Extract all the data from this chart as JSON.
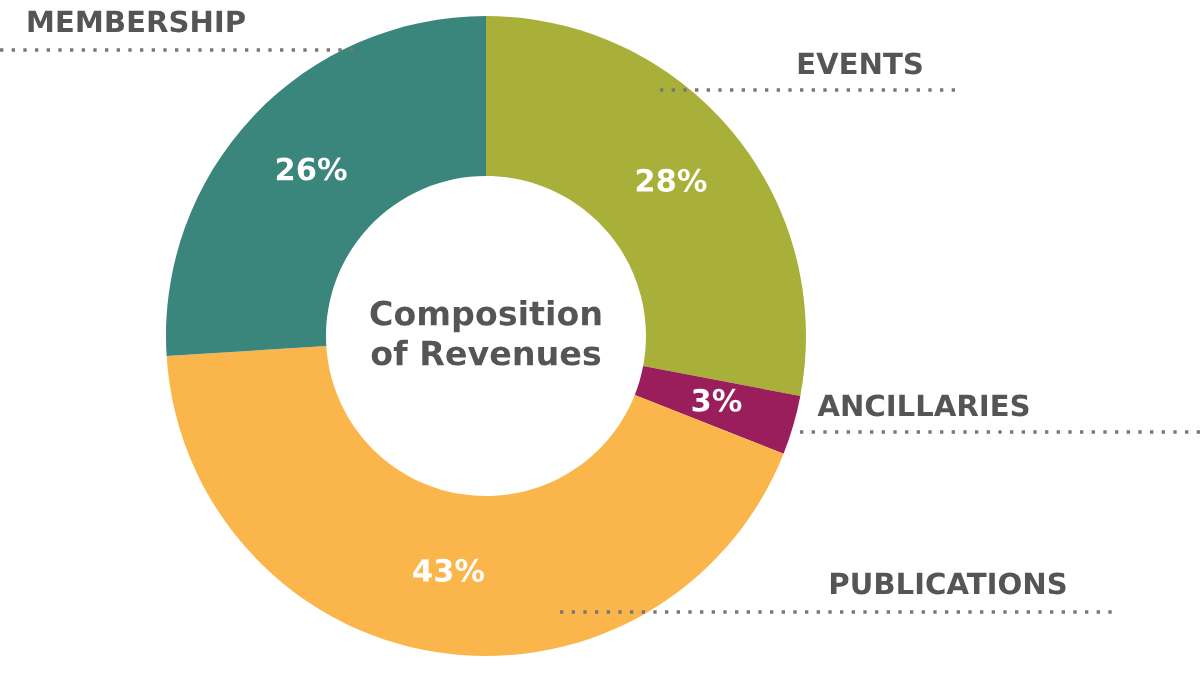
{
  "chart_data": {
    "type": "donut",
    "title": "Composition of Revenues",
    "categories": [
      "EVENTS",
      "ANCILLARIES",
      "PUBLICATIONS",
      "MEMBERSHIP"
    ],
    "values": [
      28,
      3,
      43,
      26
    ],
    "colors": [
      "#a8b03a",
      "#9a1d5c",
      "#fbb64b",
      "#3a857c"
    ],
    "value_labels": [
      "28%",
      "3%",
      "43%",
      "26%"
    ]
  }
}
